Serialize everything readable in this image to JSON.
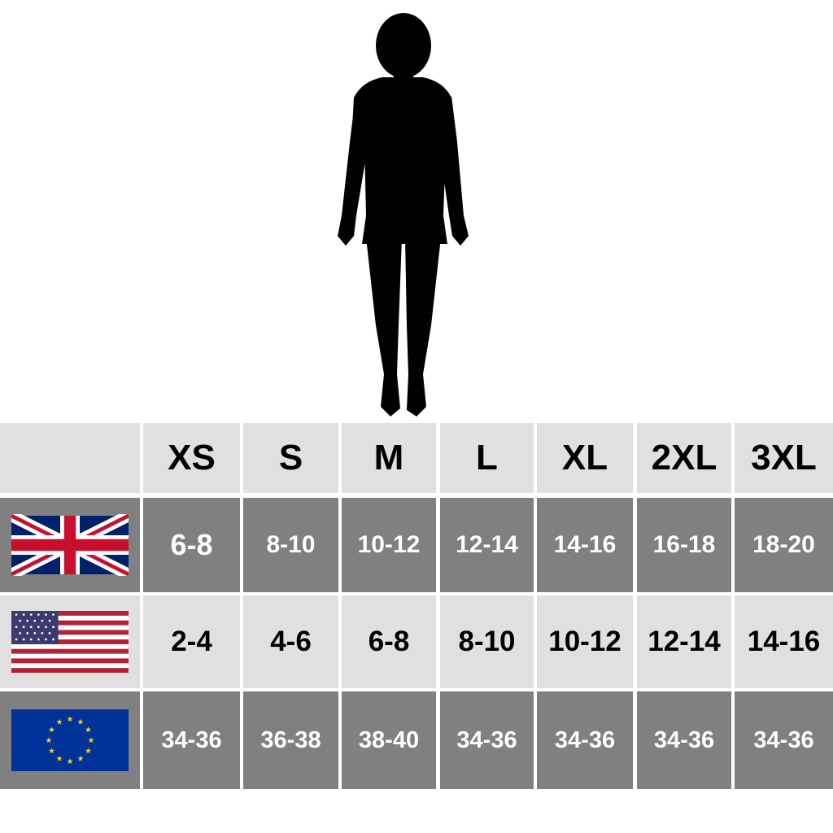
{
  "table": {
    "header": [
      "XS",
      "S",
      "M",
      "L",
      "XL",
      "2XL",
      "3XL"
    ],
    "rows": [
      [
        "6-8",
        "8-10",
        "10-12",
        "12-14",
        "14-16",
        "16-18",
        "18-20"
      ],
      [
        "2-4",
        "4-6",
        "6-8",
        "8-10",
        "10-12",
        "12-14",
        "14-16"
      ],
      [
        "34-36",
        "36-38",
        "38-40",
        "34-36",
        "34-36",
        "34-36",
        "34-36"
      ]
    ]
  }
}
